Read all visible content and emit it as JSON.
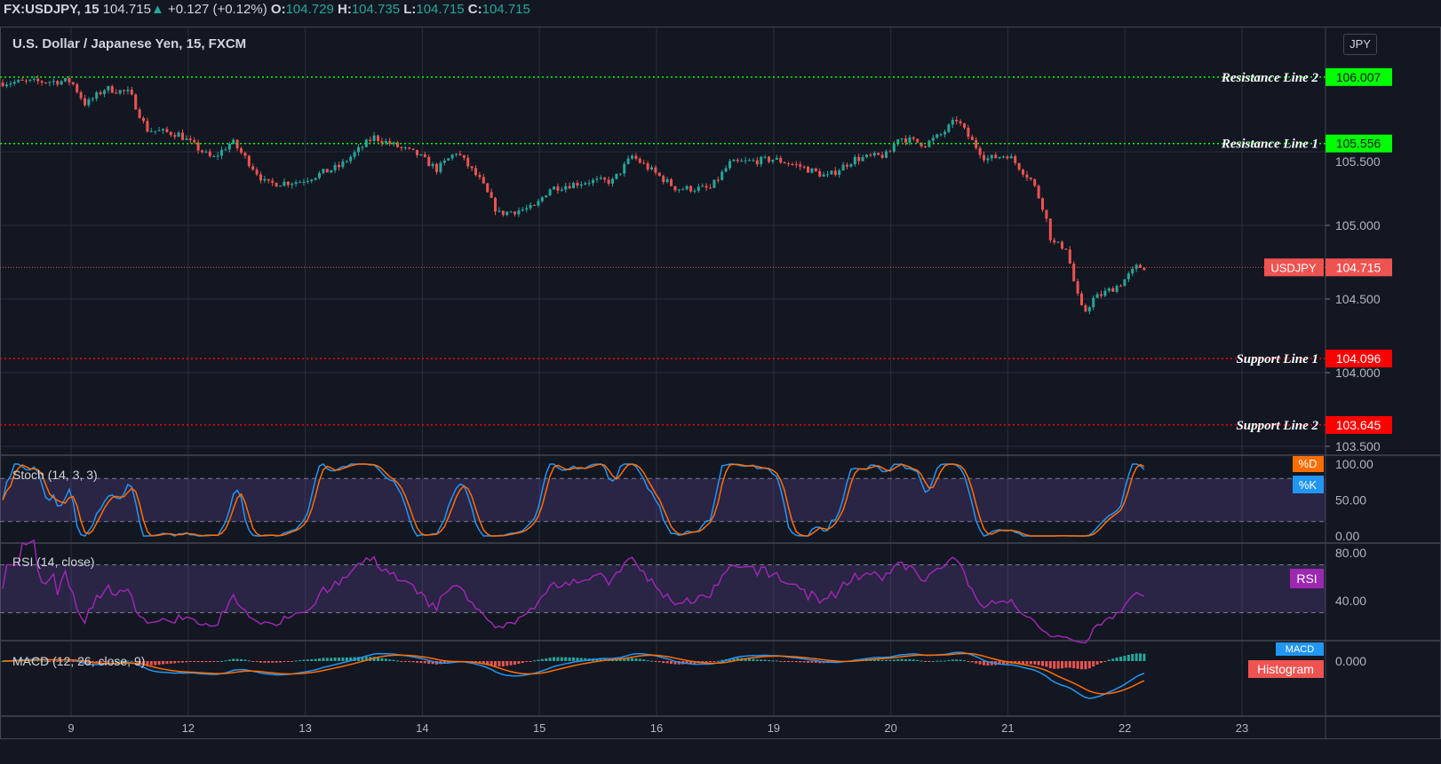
{
  "header": {
    "symbol": "FX:USDJPY, 15",
    "last": "104.715",
    "change": "+0.127 (+0.12%)",
    "o_label": "O:",
    "o": "104.729",
    "h_label": "H:",
    "h": "104.735",
    "l_label": "L:",
    "l": "104.715",
    "c_label": "C:",
    "c": "104.715",
    "subtitle": "U.S. Dollar / Japanese Yen, 15, FXCM",
    "currency_button": "JPY"
  },
  "colors": {
    "background": "#131722",
    "up": "#26a69a",
    "down": "#ef5350",
    "resistance": "#00ff00",
    "support": "#ff0000",
    "stoch_k": "#2196f3",
    "stoch_d": "#ff6d00",
    "rsi": "#9c27b0",
    "macd": "#2196f3",
    "signal": "#ff6d00"
  },
  "chart_data": {
    "type": "candlestick",
    "x_ticks": [
      "9",
      "12",
      "13",
      "14",
      "15",
      "16",
      "19",
      "20",
      "21",
      "22",
      "23"
    ],
    "trading_days": [
      8,
      9,
      12,
      13,
      14,
      15,
      16,
      19,
      20,
      21,
      22,
      23
    ],
    "price_ticks": [
      "105.500",
      "105.000",
      "104.500",
      "104.000",
      "103.500"
    ],
    "ylim": [
      103.45,
      106.35
    ],
    "grid": true,
    "approx_price_path": [
      [
        "8 10:00",
        105.97
      ],
      [
        "9 00:00",
        105.98
      ],
      [
        "9 03:00",
        105.82
      ],
      [
        "9 07:00",
        105.93
      ],
      [
        "9 12:00",
        105.9
      ],
      [
        "9 15:30",
        105.65
      ],
      [
        "9 22:00",
        105.62
      ],
      [
        "12 05:00",
        105.45
      ],
      [
        "12 09:00",
        105.57
      ],
      [
        "12 16:00",
        105.28
      ],
      [
        "12 23:00",
        105.3
      ],
      [
        "13 07:00",
        105.4
      ],
      [
        "13 14:00",
        105.6
      ],
      [
        "13 23:00",
        105.48
      ],
      [
        "14 03:00",
        105.38
      ],
      [
        "14 07:00",
        105.5
      ],
      [
        "14 12:00",
        105.3
      ],
      [
        "14 15:30",
        105.08
      ],
      [
        "14 23:00",
        105.12
      ],
      [
        "15 02:00",
        105.25
      ],
      [
        "15 10:00",
        105.3
      ],
      [
        "15 15:00",
        105.3
      ],
      [
        "15 19:00",
        105.47
      ],
      [
        "16 04:00",
        105.25
      ],
      [
        "16 11:00",
        105.25
      ],
      [
        "16 15:00",
        105.42
      ],
      [
        "19 00:00",
        105.45
      ],
      [
        "19 05:30",
        105.4
      ],
      [
        "19 11:00",
        105.33
      ],
      [
        "19 16:30",
        105.45
      ],
      [
        "19 23:30",
        105.48
      ],
      [
        "20 01:30",
        105.6
      ],
      [
        "20 07:00",
        105.55
      ],
      [
        "20 10:30",
        105.62
      ],
      [
        "20 13:30",
        105.72
      ],
      [
        "20 16:00",
        105.6
      ],
      [
        "20 19:30",
        105.45
      ],
      [
        "21 00:00",
        105.48
      ],
      [
        "21 05:00",
        105.3
      ],
      [
        "21 07:30",
        105.1
      ],
      [
        "21 09:00",
        104.88
      ],
      [
        "21 12:00",
        104.85
      ],
      [
        "21 14:00",
        104.55
      ],
      [
        "21 15:30",
        104.4
      ],
      [
        "21 17:30",
        104.5
      ],
      [
        "21 23:00",
        104.6
      ],
      [
        "22 02:30",
        104.72
      ],
      [
        "22 04:45",
        104.715
      ]
    ],
    "last_price": {
      "label": "USDJPY",
      "value": "104.715"
    },
    "levels": [
      {
        "name": "Resistance Line 2",
        "value": "106.007",
        "kind": "resistance"
      },
      {
        "name": "Resistance Line 1",
        "value": "105.556",
        "kind": "resistance"
      },
      {
        "name": "Support Line 1",
        "value": "104.096",
        "kind": "support"
      },
      {
        "name": "Support Line 2",
        "value": "103.645",
        "kind": "support"
      }
    ],
    "indicators": {
      "stoch": {
        "legend": "Stoch (14, 3, 3)",
        "ticks": [
          "100.00",
          "50.00",
          "0.00"
        ],
        "bands": [
          20,
          80
        ],
        "k_tag": "%K",
        "d_tag": "%D"
      },
      "rsi": {
        "legend": "RSI (14, close)",
        "ticks": [
          "80.00",
          "40.00"
        ],
        "bands": [
          30,
          70
        ],
        "tag": "RSI"
      },
      "macd": {
        "legend": "MACD (12, 26, close, 9)",
        "ticks": [
          "0.000"
        ],
        "tag": "MACD",
        "hist_tag": "Histogram"
      }
    }
  }
}
